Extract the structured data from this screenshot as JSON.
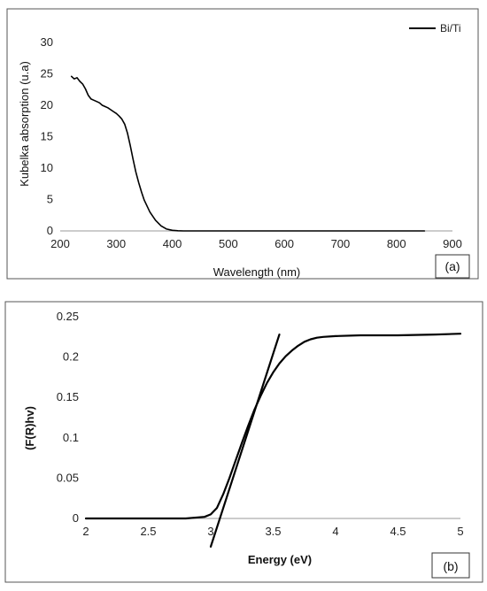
{
  "chart_data": [
    {
      "id": "a",
      "type": "line",
      "title": "",
      "xlabel": "Wavelength (nm)",
      "ylabel": "Kubelka absorption (u.a)",
      "xlim": [
        200,
        900
      ],
      "ylim": [
        0,
        30
      ],
      "xticks": [
        200,
        300,
        400,
        500,
        600,
        700,
        800,
        900
      ],
      "yticks": [
        0,
        5,
        10,
        15,
        20,
        25,
        30
      ],
      "grid": false,
      "legend_position": "top-right",
      "panel_label": "(a)",
      "series": [
        {
          "name": "Bi/Ti",
          "color": "#000000",
          "x": [
            220,
            225,
            230,
            235,
            240,
            245,
            250,
            255,
            260,
            265,
            270,
            275,
            280,
            285,
            290,
            295,
            300,
            305,
            310,
            315,
            320,
            325,
            330,
            335,
            340,
            345,
            350,
            360,
            370,
            380,
            390,
            400,
            410,
            420,
            450,
            500,
            600,
            700,
            800,
            850
          ],
          "y": [
            24.6,
            24.2,
            24.4,
            23.8,
            23.4,
            22.6,
            21.6,
            21.0,
            20.8,
            20.6,
            20.4,
            20.0,
            19.8,
            19.6,
            19.3,
            19.0,
            18.7,
            18.3,
            17.8,
            17.0,
            15.6,
            13.6,
            11.4,
            9.4,
            7.7,
            6.2,
            4.9,
            3.0,
            1.7,
            0.8,
            0.3,
            0.1,
            0.03,
            0.0,
            0.0,
            0.0,
            0.0,
            0.0,
            0.0,
            0.0
          ]
        }
      ]
    },
    {
      "id": "b",
      "type": "line",
      "title": "",
      "xlabel": "Energy (eV)",
      "ylabel": "(F(R)hv)",
      "xlim": [
        2,
        5
      ],
      "ylim": [
        0,
        0.25
      ],
      "xticks": [
        "2",
        "2.5",
        "3",
        "3.5",
        "4",
        "4.5",
        "5"
      ],
      "yticks": [
        "0",
        "0.05",
        "0.1",
        "0.15",
        "0.2",
        "0.25"
      ],
      "grid": false,
      "panel_label": "(b)",
      "series": [
        {
          "color": "#000000",
          "x": [
            2.0,
            2.5,
            2.8,
            2.95,
            3.0,
            3.05,
            3.1,
            3.15,
            3.2,
            3.25,
            3.3,
            3.35,
            3.4,
            3.45,
            3.5,
            3.55,
            3.6,
            3.65,
            3.7,
            3.75,
            3.8,
            3.85,
            3.9,
            4.0,
            4.2,
            4.5,
            4.8,
            5.0
          ],
          "y": [
            0.0,
            0.0,
            0.0,
            0.002,
            0.005,
            0.013,
            0.03,
            0.05,
            0.072,
            0.094,
            0.115,
            0.135,
            0.152,
            0.168,
            0.181,
            0.192,
            0.201,
            0.208,
            0.214,
            0.219,
            0.222,
            0.224,
            0.225,
            0.226,
            0.227,
            0.227,
            0.228,
            0.229
          ]
        },
        {
          "color": "#000000",
          "x": [
            3.0,
            3.55
          ],
          "y": [
            -0.035,
            0.228
          ]
        }
      ]
    }
  ]
}
